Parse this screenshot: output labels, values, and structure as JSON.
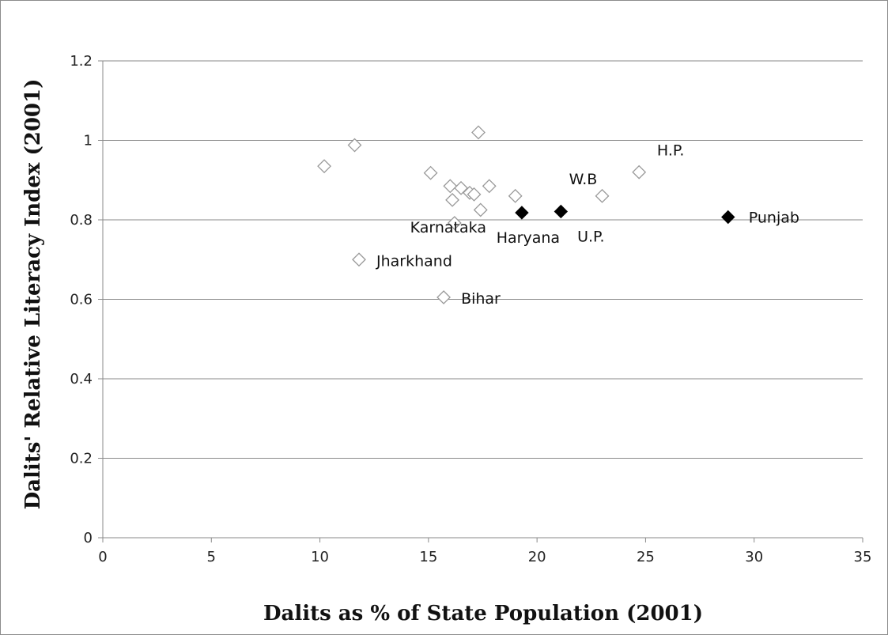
{
  "chart_data": {
    "type": "scatter",
    "title": "",
    "xlabel": "Dalits as % of State Population (2001)",
    "ylabel": "Dalits' Relative Literacy Index (2001)",
    "xlim": [
      0,
      35
    ],
    "ylim": [
      0,
      1.2
    ],
    "xticks": [
      0,
      5,
      10,
      15,
      20,
      25,
      30,
      35
    ],
    "yticks": [
      0,
      0.2,
      0.4,
      0.6,
      0.8,
      1,
      1.2
    ],
    "xtick_labels": [
      "0",
      "5",
      "10",
      "15",
      "20",
      "25",
      "30",
      "35"
    ],
    "ytick_labels": [
      "0",
      "0.2",
      "0.4",
      "0.6",
      "0.8",
      "1",
      "1.2"
    ],
    "grid": "horizontal",
    "marker_colors": {
      "open": "#999999",
      "filled": "#000000"
    },
    "points": [
      {
        "x": 10.2,
        "y": 0.935,
        "style": "open"
      },
      {
        "x": 11.6,
        "y": 0.988,
        "style": "open"
      },
      {
        "x": 11.8,
        "y": 0.7,
        "style": "open",
        "label": "Jharkhand"
      },
      {
        "x": 15.1,
        "y": 0.918,
        "style": "open"
      },
      {
        "x": 15.7,
        "y": 0.605,
        "style": "open",
        "label": "Bihar"
      },
      {
        "x": 16.0,
        "y": 0.885,
        "style": "open"
      },
      {
        "x": 16.1,
        "y": 0.85,
        "style": "open"
      },
      {
        "x": 16.2,
        "y": 0.792,
        "style": "open",
        "label": "Karnataka"
      },
      {
        "x": 16.5,
        "y": 0.88,
        "style": "open"
      },
      {
        "x": 16.9,
        "y": 0.868,
        "style": "open"
      },
      {
        "x": 17.1,
        "y": 0.864,
        "style": "open"
      },
      {
        "x": 17.3,
        "y": 1.02,
        "style": "open"
      },
      {
        "x": 17.4,
        "y": 0.825,
        "style": "open"
      },
      {
        "x": 17.8,
        "y": 0.885,
        "style": "open"
      },
      {
        "x": 19.0,
        "y": 0.86,
        "style": "open"
      },
      {
        "x": 19.3,
        "y": 0.818,
        "style": "filled",
        "label": "Haryana"
      },
      {
        "x": 21.1,
        "y": 0.821,
        "style": "filled",
        "label": "U.P."
      },
      {
        "x": 23.0,
        "y": 0.86,
        "style": "open",
        "label": "W.B"
      },
      {
        "x": 24.7,
        "y": 0.92,
        "style": "open",
        "label": "H.P."
      },
      {
        "x": 28.8,
        "y": 0.807,
        "style": "filled",
        "label": "Punjab"
      }
    ]
  }
}
